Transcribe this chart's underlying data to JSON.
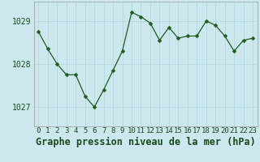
{
  "x": [
    0,
    1,
    2,
    3,
    4,
    5,
    6,
    7,
    8,
    9,
    10,
    11,
    12,
    13,
    14,
    15,
    16,
    17,
    18,
    19,
    20,
    21,
    22,
    23
  ],
  "y": [
    1028.75,
    1028.35,
    1028.0,
    1027.75,
    1027.75,
    1027.25,
    1027.0,
    1027.4,
    1027.85,
    1028.3,
    1029.2,
    1029.1,
    1028.95,
    1028.55,
    1028.85,
    1028.6,
    1028.65,
    1028.65,
    1029.0,
    1028.9,
    1028.65,
    1028.3,
    1028.55,
    1028.6
  ],
  "line_color": "#1f5c1f",
  "marker": "D",
  "marker_size": 2.5,
  "bg_color": "#cce8ee",
  "plot_bg_color": "#cce8ee",
  "grid_color": "#b0d4dc",
  "ylabel_ticks": [
    1027,
    1028,
    1029
  ],
  "xlabel_label": "Graphe pression niveau de la mer (hPa)",
  "ylim": [
    1026.55,
    1029.45
  ],
  "xlim": [
    -0.5,
    23.5
  ],
  "tick_fontsize": 7.0,
  "label_fontsize": 8.5,
  "label_color": "#1a4a1a"
}
